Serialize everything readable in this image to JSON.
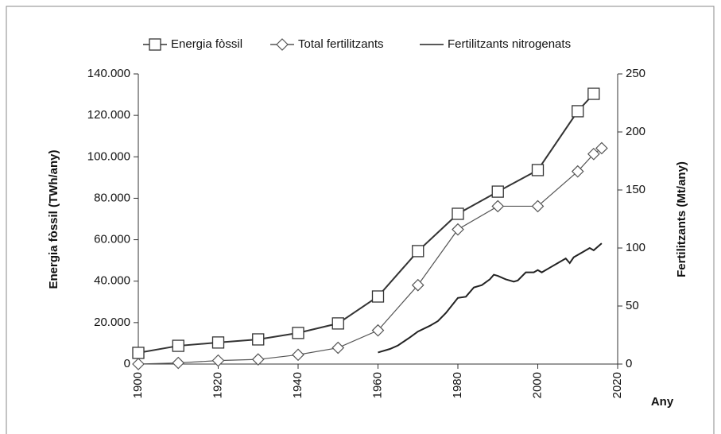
{
  "chart_data": {
    "type": "line",
    "xlabel": "Any",
    "ylabel": "Energia fòssil (TWh/any)",
    "y2label": "Fertilitzants (Mt/any)",
    "xlim": [
      1900,
      2020
    ],
    "xticks": [
      1900,
      1920,
      1940,
      1960,
      1980,
      2000,
      2020
    ],
    "ylim": [
      0,
      140000
    ],
    "yticks": [
      0,
      {
        "value": 20000,
        "label": "20.000"
      },
      {
        "value": 40000,
        "label": "40.000"
      },
      {
        "value": 60000,
        "label": "60.000"
      },
      {
        "value": 80000,
        "label": "80.000"
      },
      {
        "value": 100000,
        "label": "100.000"
      },
      {
        "value": 120000,
        "label": "120.000"
      },
      {
        "value": 140000,
        "label": "140.000"
      }
    ],
    "y2lim": [
      0,
      250
    ],
    "y2ticks": [
      0,
      50,
      100,
      150,
      200,
      250
    ],
    "series": [
      {
        "name": "Energia fòssil",
        "color": "#333333",
        "marker": "square",
        "x": [
          1900,
          1910,
          1920,
          1930,
          1940,
          1950,
          1960,
          1970,
          1980,
          1990,
          2000,
          2010,
          2014
        ],
        "values": [
          5400,
          8800,
          10400,
          11900,
          15000,
          19600,
          32600,
          54500,
          72500,
          83200,
          93600,
          122000,
          130400
        ]
      },
      {
        "name": "Total fertilitzants",
        "color": "#555555",
        "marker": "diamond",
        "axis": "y2",
        "x": [
          1900,
          1910,
          1920,
          1930,
          1940,
          1950,
          1960,
          1970,
          1980,
          1990,
          2000,
          2010,
          2014,
          2016
        ],
        "values": [
          0,
          1,
          3,
          4,
          8,
          14,
          29,
          68,
          116,
          136,
          136,
          166,
          181,
          186
        ]
      },
      {
        "name": "Fertilitzants nitrogenats",
        "color": "#222222",
        "axis": "y2",
        "x": [
          1960,
          1963,
          1965,
          1968,
          1970,
          1973,
          1975,
          1977,
          1980,
          1982,
          1984,
          1986,
          1988,
          1989,
          1990,
          1992,
          1994,
          1995,
          1997,
          1999,
          2000,
          2001,
          2003,
          2005,
          2007,
          2008,
          2009,
          2011,
          2013,
          2014,
          2016
        ],
        "values": [
          10,
          13,
          16,
          23,
          28,
          33,
          37,
          44,
          57,
          58,
          66,
          68,
          73,
          77,
          76,
          73,
          71,
          72,
          79,
          79,
          81,
          79,
          83,
          87,
          91,
          87,
          92,
          96,
          100,
          98,
          104
        ]
      }
    ]
  }
}
